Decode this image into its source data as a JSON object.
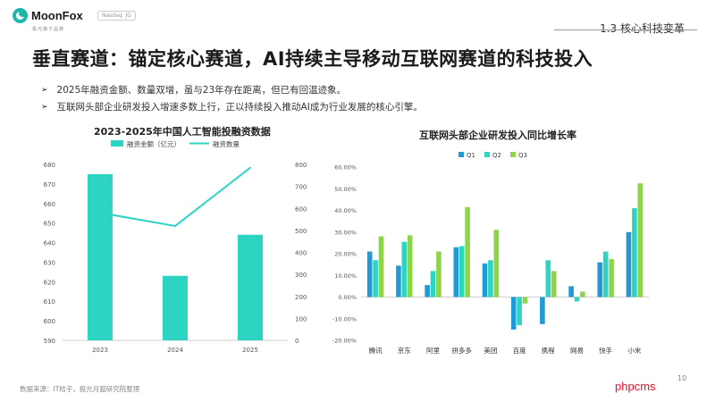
{
  "header": {
    "brand": "MoonFox",
    "brand_sub": "极光旗下品牌",
    "badge": "Nasdaq: JG",
    "section": "1.3 核心科技变革"
  },
  "headline": "垂直赛道：锚定核心赛道，AI持续主导移动互联网赛道的科技投入",
  "bullets": [
    "2025年融资金额、数量双增，虽与23年存在距离，但已有回温迹象。",
    "互联网头部企业研发投入增速多数上行，正以持续投入推动AI成为行业发展的核心引擎。"
  ],
  "bullet_marker": "➢",
  "footer": {
    "source": "数据来源：IT桔子，极光月狐研究院整理",
    "page": "10",
    "watermark": "phpcms"
  },
  "colors": {
    "teal": "#2dd4c2",
    "blue": "#1f9ad6",
    "green": "#8dd44a",
    "axis_text": "#555555",
    "grid": "#e8e8e8"
  },
  "chart_data": [
    {
      "type": "bar",
      "title": "2023-2025年中国人工智能投融资数据",
      "categories": [
        "2023",
        "2024",
        "2025"
      ],
      "series": [
        {
          "name": "融资金额（亿元）",
          "type": "bar",
          "axis": "left",
          "values": [
            675,
            623,
            644
          ]
        },
        {
          "name": "融资数量",
          "type": "line",
          "axis": "right",
          "values": [
            580,
            520,
            785
          ]
        }
      ],
      "ylim_left": [
        590,
        680
      ],
      "yticks_left": [
        590,
        600,
        610,
        620,
        630,
        640,
        650,
        660,
        670,
        680
      ],
      "ylim_right": [
        0,
        800
      ],
      "yticks_right": [
        0,
        100,
        200,
        300,
        400,
        500,
        600,
        700,
        800
      ],
      "legend": "top",
      "grid": false
    },
    {
      "type": "bar",
      "title": "互联网头部企业研发投入同比增长率",
      "categories": [
        "腾讯",
        "京东",
        "阿里",
        "拼多多",
        "美团",
        "百度",
        "携程",
        "网易",
        "快手",
        "小米"
      ],
      "series": [
        {
          "name": "Q1",
          "values": [
            21,
            14.5,
            5.5,
            23,
            15.5,
            -15,
            -12.5,
            5,
            16,
            30
          ]
        },
        {
          "name": "Q2",
          "values": [
            17,
            25.5,
            12,
            23.5,
            17,
            -13,
            17,
            -2,
            21,
            41
          ]
        },
        {
          "name": "Q3",
          "values": [
            28,
            28.5,
            21,
            41.5,
            31,
            -3,
            12,
            2.5,
            17.5,
            52.5
          ]
        }
      ],
      "ylim": [
        -20,
        60
      ],
      "yticks": [
        "-20.00%",
        "-10.00%",
        "0.00%",
        "10.00%",
        "20.00%",
        "30.00%",
        "40.00%",
        "50.00%",
        "60.00%"
      ],
      "legend": "top",
      "grid": false
    }
  ]
}
